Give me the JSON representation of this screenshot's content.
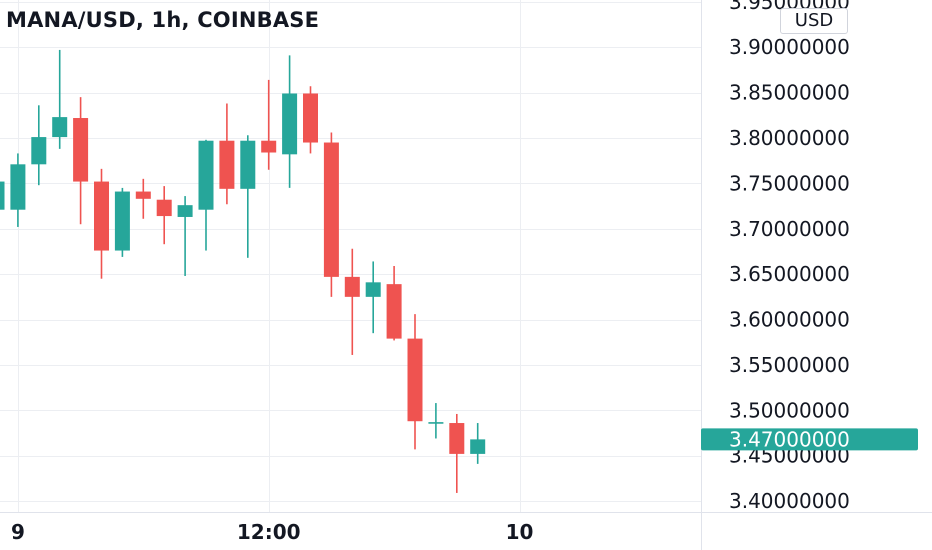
{
  "header": {
    "title": "MANA/USD, 1h, COINBASE",
    "currency": "USD"
  },
  "colors": {
    "up": "#26a69a",
    "down": "#ef5350",
    "grid": "#eceef2",
    "axis_text": "#131722",
    "last_price_bg": "#26a69a"
  },
  "chart_data": {
    "type": "candlestick",
    "title": "MANA/USD, 1h, COINBASE",
    "y_axis_labels": [
      "3.95000000",
      "3.90000000",
      "3.85000000",
      "3.80000000",
      "3.75000000",
      "3.70000000",
      "3.65000000",
      "3.60000000",
      "3.55000000",
      "3.50000000",
      "3.45000000",
      "3.40000000"
    ],
    "y_ticks": [
      3.95,
      3.9,
      3.85,
      3.8,
      3.75,
      3.7,
      3.65,
      3.6,
      3.55,
      3.5,
      3.45,
      3.4
    ],
    "ylim": [
      3.388,
      3.952
    ],
    "x_axis_labels": [
      {
        "label": "9",
        "index": 1
      },
      {
        "label": "12:00",
        "index": 13
      },
      {
        "label": "10",
        "index": 25
      }
    ],
    "last_price_label": "3.47000000",
    "last_price": 3.468,
    "grid": true,
    "candles": [
      {
        "o": 3.721,
        "h": 3.752,
        "l": 3.721,
        "c": 3.752
      },
      {
        "o": 3.721,
        "h": 3.783,
        "l": 3.702,
        "c": 3.771
      },
      {
        "o": 3.771,
        "h": 3.836,
        "l": 3.748,
        "c": 3.801
      },
      {
        "o": 3.801,
        "h": 3.897,
        "l": 3.788,
        "c": 3.823
      },
      {
        "o": 3.822,
        "h": 3.845,
        "l": 3.705,
        "c": 3.752
      },
      {
        "o": 3.752,
        "h": 3.766,
        "l": 3.645,
        "c": 3.676
      },
      {
        "o": 3.676,
        "h": 3.745,
        "l": 3.669,
        "c": 3.741
      },
      {
        "o": 3.741,
        "h": 3.755,
        "l": 3.711,
        "c": 3.733
      },
      {
        "o": 3.732,
        "h": 3.747,
        "l": 3.683,
        "c": 3.714
      },
      {
        "o": 3.713,
        "h": 3.736,
        "l": 3.648,
        "c": 3.726
      },
      {
        "o": 3.721,
        "h": 3.798,
        "l": 3.676,
        "c": 3.797
      },
      {
        "o": 3.797,
        "h": 3.838,
        "l": 3.727,
        "c": 3.744
      },
      {
        "o": 3.744,
        "h": 3.803,
        "l": 3.668,
        "c": 3.797
      },
      {
        "o": 3.797,
        "h": 3.864,
        "l": 3.765,
        "c": 3.784
      },
      {
        "o": 3.782,
        "h": 3.891,
        "l": 3.745,
        "c": 3.849
      },
      {
        "o": 3.849,
        "h": 3.857,
        "l": 3.783,
        "c": 3.795
      },
      {
        "o": 3.795,
        "h": 3.806,
        "l": 3.625,
        "c": 3.647
      },
      {
        "o": 3.647,
        "h": 3.678,
        "l": 3.561,
        "c": 3.625
      },
      {
        "o": 3.625,
        "h": 3.664,
        "l": 3.585,
        "c": 3.641
      },
      {
        "o": 3.639,
        "h": 3.659,
        "l": 3.577,
        "c": 3.579
      },
      {
        "o": 3.579,
        "h": 3.606,
        "l": 3.457,
        "c": 3.488
      },
      {
        "o": 3.487,
        "h": 3.508,
        "l": 3.469,
        "c": 3.487
      },
      {
        "o": 3.486,
        "h": 3.496,
        "l": 3.409,
        "c": 3.452
      },
      {
        "o": 3.452,
        "h": 3.486,
        "l": 3.441,
        "c": 3.468
      }
    ]
  }
}
